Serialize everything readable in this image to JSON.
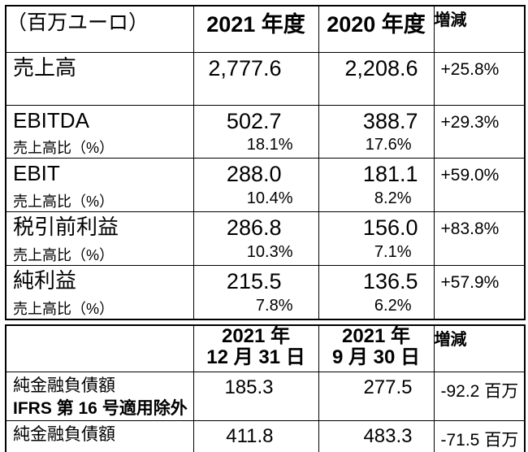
{
  "table1": {
    "header": {
      "units": "（百万ユーロ）",
      "col_2021": "2021 年度",
      "col_2020": "2020 年度",
      "col_change": "増減"
    },
    "rows": [
      {
        "label": "売上高",
        "v2021": "2,777.6",
        "v2020": "2,208.6",
        "change": "+25.8%"
      },
      {
        "label": "EBITDA",
        "sub": "売上高比（%）",
        "v2021": "502.7",
        "p2021": "18.1%",
        "v2020": "388.7",
        "p2020": "17.6%",
        "change": "+29.3%"
      },
      {
        "label": "EBIT",
        "sub": "売上高比（%）",
        "v2021": "288.0",
        "p2021": "10.4%",
        "v2020": "181.1",
        "p2020": "8.2%",
        "change": "+59.0%"
      },
      {
        "label": "税引前利益",
        "sub": "売上高比（%）",
        "v2021": "286.8",
        "p2021": "10.3%",
        "v2020": "156.0",
        "p2020": "7.1%",
        "change": "+83.8%"
      },
      {
        "label": "純利益",
        "sub": "売上高比（%）",
        "v2021": "215.5",
        "p2021": "7.8%",
        "v2020": "136.5",
        "p2020": "6.2%",
        "change": "+57.9%"
      }
    ]
  },
  "table2": {
    "header": {
      "col1": "",
      "date1_line1": "2021 年",
      "date1_line2": "12 月 31 日",
      "date2_line1": "2021 年",
      "date2_line2": "9 月 30 日",
      "col_change": "増減"
    },
    "rows": [
      {
        "label": "純金融負債額",
        "label_line2": "IFRS 第 16 号適用除外",
        "v1": "185.3",
        "v2": "277.5",
        "change": "-92.2 百万"
      },
      {
        "label": "純金融負債額",
        "v1": "411.8",
        "v2": "483.3",
        "change": "-71.5 百万"
      }
    ]
  }
}
